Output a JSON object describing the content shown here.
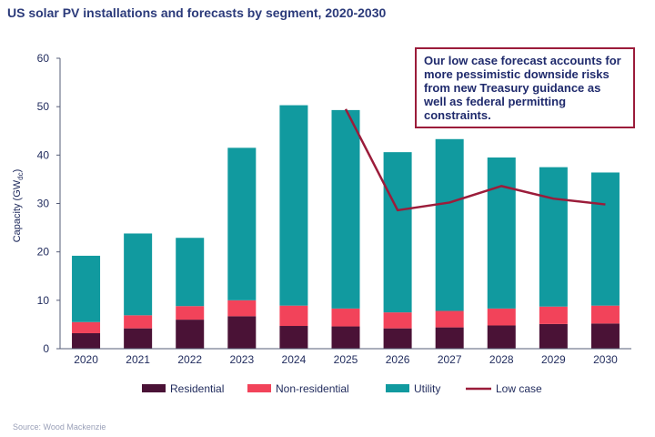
{
  "chart_data": {
    "type": "bar",
    "stacked": true,
    "title": "US solar PV installations and forecasts  by segment, 2020-2030",
    "ylabel": "Capacity (GWdc)",
    "ylim": [
      0,
      60
    ],
    "yticks": [
      0,
      10,
      20,
      30,
      40,
      50,
      60
    ],
    "categories": [
      "2020",
      "2021",
      "2022",
      "2023",
      "2024",
      "2025",
      "2026",
      "2027",
      "2028",
      "2029",
      "2030"
    ],
    "series": [
      {
        "name": "Residential",
        "kind": "bar",
        "color": "#4a1236",
        "values": [
          3.2,
          4.2,
          6.0,
          6.7,
          4.7,
          4.6,
          4.2,
          4.4,
          4.8,
          5.1,
          5.2
        ]
      },
      {
        "name": "Non-residential",
        "kind": "bar",
        "color": "#f2435a",
        "values": [
          2.3,
          2.7,
          2.8,
          3.3,
          4.2,
          3.7,
          3.3,
          3.4,
          3.5,
          3.6,
          3.7
        ]
      },
      {
        "name": "Utility",
        "kind": "bar",
        "color": "#119a9f",
        "values": [
          13.7,
          16.9,
          14.1,
          31.5,
          41.4,
          41.0,
          33.1,
          35.5,
          31.2,
          28.8,
          27.5
        ]
      },
      {
        "name": "Low case",
        "kind": "line",
        "color": "#9b1c3a",
        "values": [
          null,
          null,
          null,
          null,
          null,
          49.5,
          28.6,
          30.2,
          33.6,
          31.0,
          29.8
        ]
      }
    ],
    "legend": "bottom",
    "grid": false,
    "annotation": "Our low case forecast accounts for more pessimistic  downside risks  from new Treasury guidance as well as federal permitting constraints.",
    "source": "Source: Wood Mackenzie"
  }
}
